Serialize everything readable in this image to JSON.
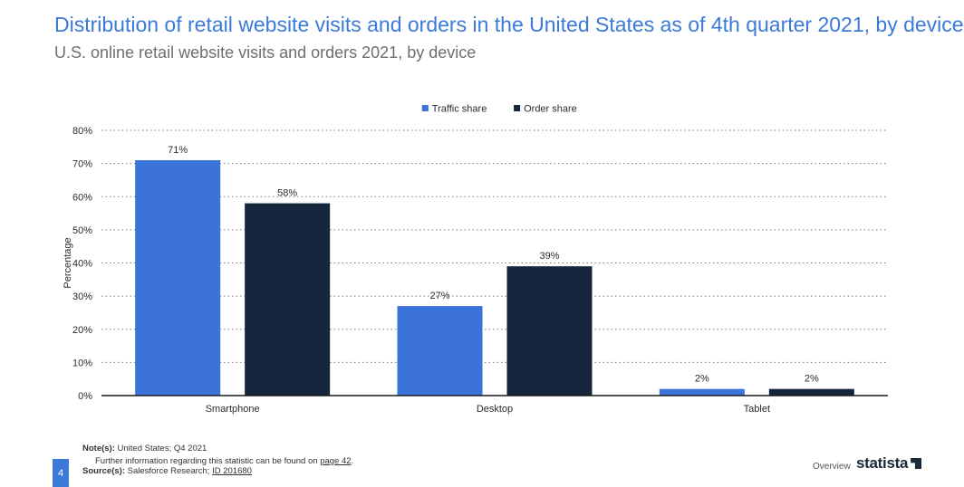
{
  "header": {
    "title": "Distribution of retail website visits and orders in the United States as of 4th quarter 2021, by device",
    "subtitle": "U.S. online retail website visits and orders 2021, by device"
  },
  "chart_data": {
    "type": "bar",
    "categories": [
      "Smartphone",
      "Desktop",
      "Tablet"
    ],
    "series": [
      {
        "name": "Traffic share",
        "values": [
          71,
          27,
          2
        ],
        "color": "#3b73d9"
      },
      {
        "name": "Order share",
        "values": [
          58,
          39,
          2
        ],
        "color": "#16263d"
      }
    ],
    "data_labels": [
      [
        "71%",
        "27%",
        "2%"
      ],
      [
        "58%",
        "39%",
        "2%"
      ]
    ],
    "ylabel": "Percentage",
    "xlabel": "",
    "ylim": [
      0,
      80
    ],
    "yticks": [
      0,
      10,
      20,
      30,
      40,
      50,
      60,
      70,
      80
    ],
    "ytick_labels": [
      "0%",
      "10%",
      "20%",
      "30%",
      "40%",
      "50%",
      "60%",
      "70%",
      "80%"
    ],
    "grid": true,
    "legend_position": "top-center"
  },
  "footer": {
    "notes_label": "Note(s):",
    "notes_text": "United States; Q4 2021",
    "further_info": "Further information regarding this statistic can be found on",
    "page_link": "page 42",
    "page_link_suffix": ".",
    "source_label": "Source(s):",
    "source_text": "Salesforce Research;",
    "source_id": "ID 201680",
    "page_number": "4",
    "overview": "Overview",
    "brand": "statista"
  }
}
